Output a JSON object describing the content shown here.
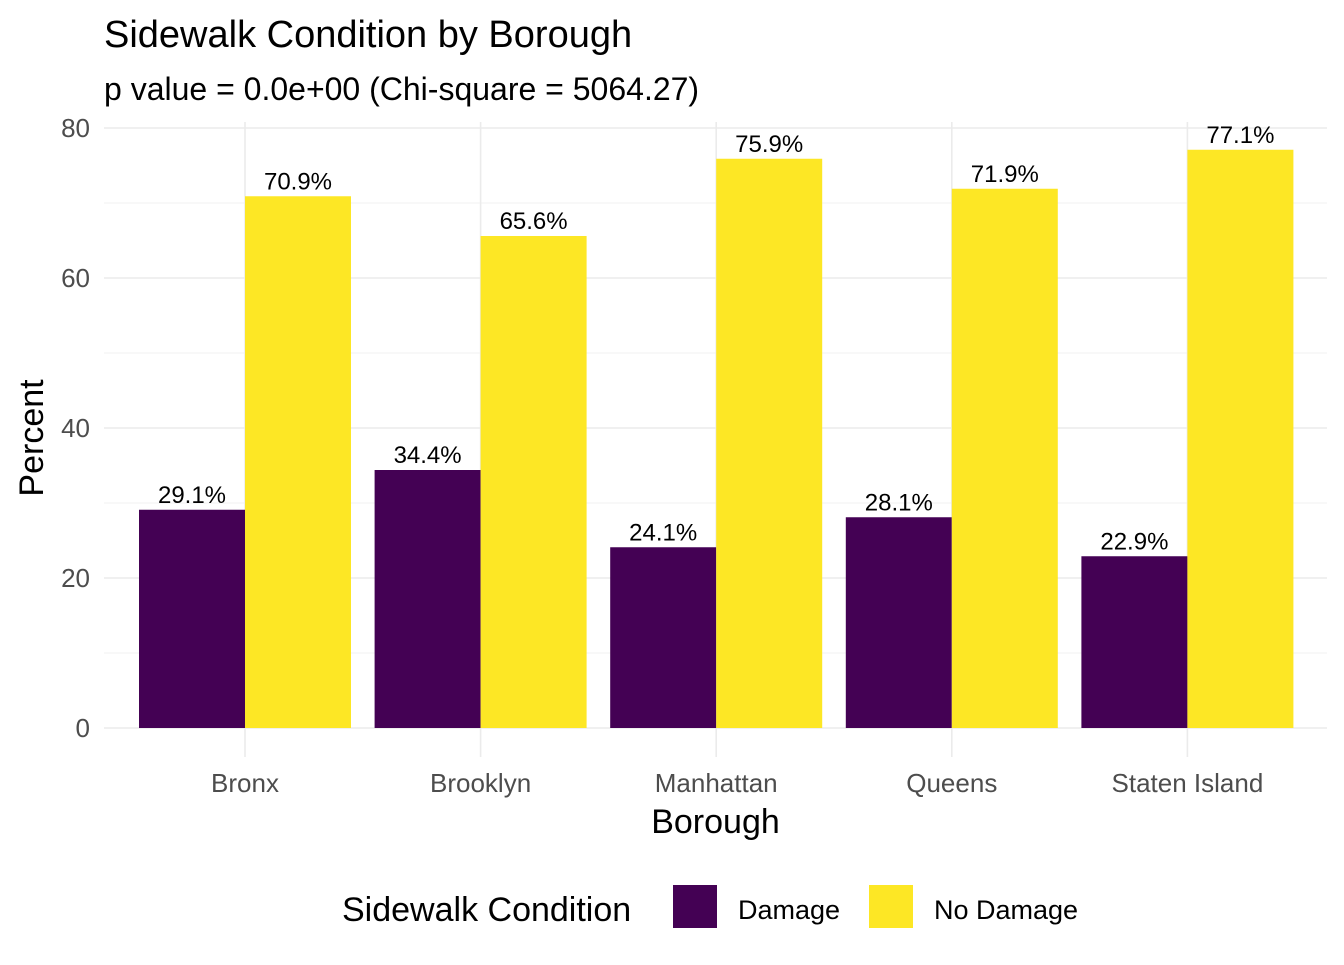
{
  "chart_data": {
    "type": "bar",
    "title": "Sidewalk Condition by Borough",
    "subtitle": "p value = 0.0e+00 (Chi-square = 5064.27)",
    "xlabel": "Borough",
    "ylabel": "Percent",
    "categories": [
      "Bronx",
      "Brooklyn",
      "Manhattan",
      "Queens",
      "Staten Island"
    ],
    "series": [
      {
        "name": "Damage",
        "color": "#440154",
        "values": [
          29.1,
          34.4,
          24.1,
          28.1,
          22.9
        ],
        "labels": [
          "29.1%",
          "34.4%",
          "24.1%",
          "28.1%",
          "22.9%"
        ]
      },
      {
        "name": "No Damage",
        "color": "#FDE725",
        "values": [
          70.9,
          65.6,
          75.9,
          71.9,
          77.1
        ],
        "labels": [
          "70.9%",
          "65.6%",
          "75.9%",
          "71.9%",
          "77.1%"
        ]
      }
    ],
    "ylim": [
      0,
      80
    ],
    "yticks": [
      0,
      20,
      40,
      60,
      80
    ],
    "grid": true,
    "legend": {
      "title": "Sidewalk Condition",
      "placement": "bottom"
    }
  }
}
